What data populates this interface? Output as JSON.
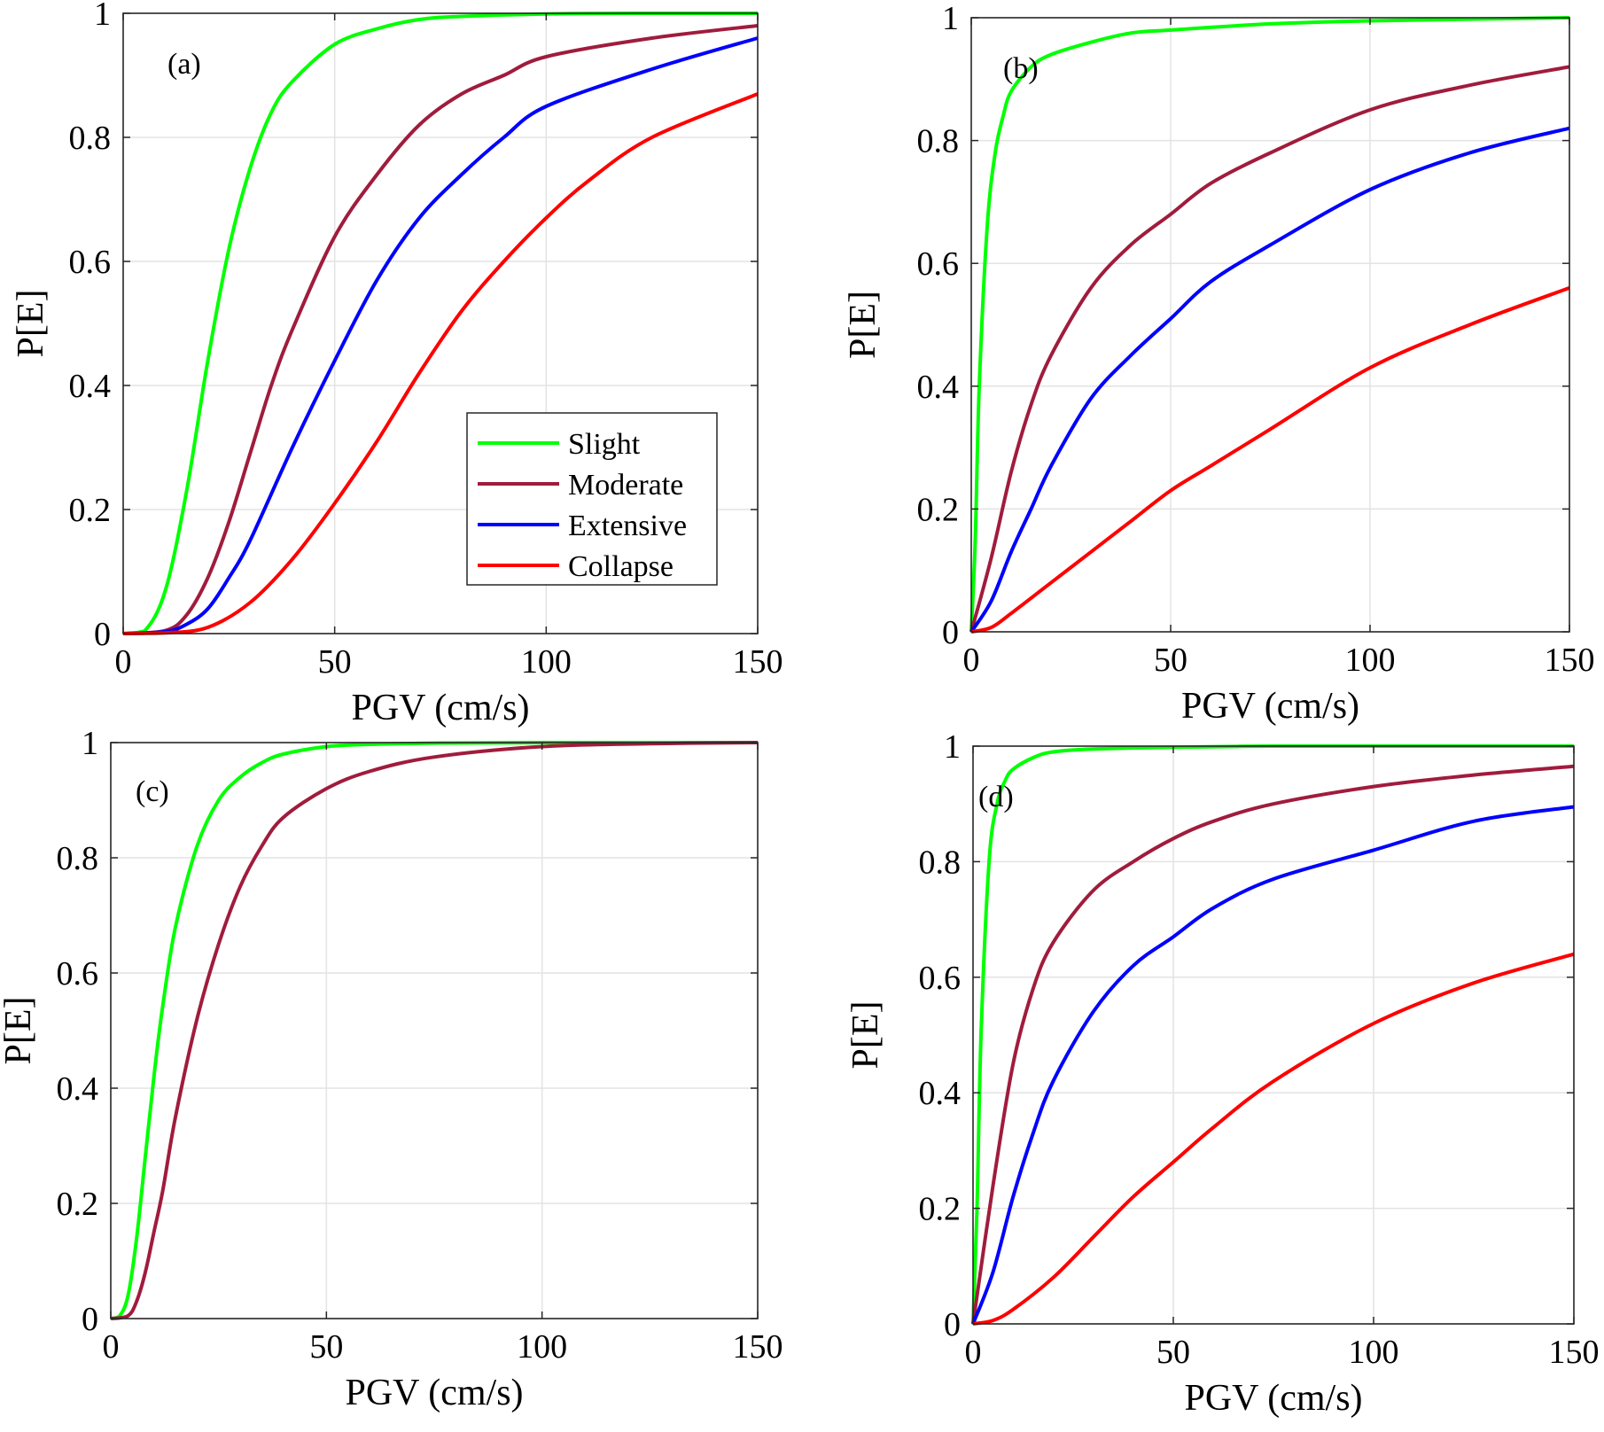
{
  "chart_data": [
    {
      "type": "line",
      "panel_label": "(a)",
      "xlabel": "PGV (cm/s)",
      "ylabel": "P[E]",
      "xlim": [
        0,
        150
      ],
      "ylim": [
        0,
        1
      ],
      "xticks": [
        0,
        50,
        100,
        150
      ],
      "yticks": [
        0,
        0.2,
        0.4,
        0.6,
        0.8,
        1
      ],
      "xtick_labels": [
        "0",
        "50",
        "100",
        "150"
      ],
      "ytick_labels": [
        "0",
        "0.2",
        "0.4",
        "0.6",
        "0.8",
        "1"
      ],
      "grid": true,
      "legend": "inside center-right",
      "series": [
        {
          "name": "Slight",
          "color": "#00ff00",
          "x": [
            0,
            5,
            10,
            15,
            20,
            25,
            30,
            35,
            40,
            50,
            60,
            70,
            80,
            100,
            125,
            150
          ],
          "y": [
            0,
            0.004,
            0.07,
            0.23,
            0.44,
            0.62,
            0.75,
            0.84,
            0.89,
            0.95,
            0.975,
            0.99,
            0.995,
            0.999,
            1.0,
            1.0
          ]
        },
        {
          "name": "Moderate",
          "color": "#a01c3c",
          "x": [
            0,
            10,
            15,
            20,
            25,
            30,
            35,
            40,
            50,
            60,
            70,
            80,
            90,
            100,
            125,
            150
          ],
          "y": [
            0,
            0.005,
            0.03,
            0.09,
            0.18,
            0.29,
            0.4,
            0.49,
            0.64,
            0.74,
            0.82,
            0.87,
            0.9,
            0.93,
            0.96,
            0.98
          ]
        },
        {
          "name": "Extensive",
          "color": "#0000ff",
          "x": [
            0,
            10,
            15,
            20,
            25,
            30,
            40,
            50,
            60,
            70,
            80,
            90,
            100,
            125,
            150
          ],
          "y": [
            0,
            0.003,
            0.015,
            0.04,
            0.09,
            0.15,
            0.3,
            0.44,
            0.57,
            0.67,
            0.74,
            0.8,
            0.85,
            0.91,
            0.96
          ]
        },
        {
          "name": "Collapse",
          "color": "#ff0000",
          "x": [
            0,
            10,
            20,
            30,
            40,
            50,
            60,
            70,
            80,
            90,
            100,
            110,
            125,
            150
          ],
          "y": [
            0,
            0.001,
            0.01,
            0.05,
            0.12,
            0.21,
            0.31,
            0.42,
            0.52,
            0.6,
            0.67,
            0.73,
            0.8,
            0.87
          ]
        }
      ]
    },
    {
      "type": "line",
      "panel_label": "(b)",
      "xlabel": "PGV (cm/s)",
      "ylabel": "P[E]",
      "xlim": [
        0,
        150
      ],
      "ylim": [
        0,
        1
      ],
      "xticks": [
        0,
        50,
        100,
        150
      ],
      "yticks": [
        0,
        0.2,
        0.4,
        0.6,
        0.8,
        1
      ],
      "xtick_labels": [
        "0",
        "50",
        "100",
        "150"
      ],
      "ytick_labels": [
        "0",
        "0.2",
        "0.4",
        "0.6",
        "0.8",
        "1"
      ],
      "grid": true,
      "series": [
        {
          "color": "#00ff00",
          "x": [
            0,
            1,
            2,
            4,
            6,
            8,
            10,
            15,
            20,
            30,
            40,
            50,
            75,
            100,
            150
          ],
          "y": [
            0,
            0.15,
            0.4,
            0.66,
            0.78,
            0.84,
            0.88,
            0.92,
            0.94,
            0.96,
            0.975,
            0.98,
            0.99,
            0.995,
            1.0
          ]
        },
        {
          "color": "#a01c3c",
          "x": [
            0,
            5,
            10,
            15,
            20,
            30,
            40,
            50,
            60,
            75,
            100,
            125,
            150
          ],
          "y": [
            0,
            0.12,
            0.26,
            0.37,
            0.45,
            0.56,
            0.63,
            0.68,
            0.73,
            0.78,
            0.85,
            0.89,
            0.92
          ]
        },
        {
          "color": "#0000ff",
          "x": [
            0,
            5,
            10,
            15,
            20,
            30,
            40,
            50,
            60,
            75,
            100,
            125,
            150
          ],
          "y": [
            0,
            0.05,
            0.13,
            0.2,
            0.27,
            0.38,
            0.45,
            0.51,
            0.57,
            0.63,
            0.72,
            0.78,
            0.82
          ]
        },
        {
          "color": "#ff0000",
          "x": [
            0,
            5,
            10,
            20,
            30,
            40,
            50,
            60,
            75,
            100,
            125,
            150
          ],
          "y": [
            0,
            0.007,
            0.03,
            0.08,
            0.13,
            0.18,
            0.23,
            0.27,
            0.33,
            0.43,
            0.5,
            0.56
          ]
        }
      ]
    },
    {
      "type": "line",
      "panel_label": "(c)",
      "xlabel": "PGV (cm/s)",
      "ylabel": "P[E]",
      "xlim": [
        0,
        150
      ],
      "ylim": [
        0,
        1
      ],
      "xticks": [
        0,
        50,
        100,
        150
      ],
      "yticks": [
        0,
        0.2,
        0.4,
        0.6,
        0.8,
        1
      ],
      "xtick_labels": [
        "0",
        "50",
        "100",
        "150"
      ],
      "ytick_labels": [
        "0",
        "0.2",
        "0.4",
        "0.6",
        "0.8",
        "1"
      ],
      "grid": true,
      "series": [
        {
          "color": "#00ff00",
          "x": [
            0,
            2,
            4,
            6,
            8,
            10,
            12,
            15,
            20,
            25,
            30,
            35,
            40,
            50,
            60,
            75,
            100,
            150
          ],
          "y": [
            0,
            0.004,
            0.04,
            0.14,
            0.28,
            0.42,
            0.54,
            0.68,
            0.82,
            0.9,
            0.94,
            0.965,
            0.98,
            0.993,
            0.997,
            0.999,
            1.0,
            1.0
          ]
        },
        {
          "color": "#a01c3c",
          "x": [
            0,
            4,
            6,
            8,
            10,
            12,
            15,
            20,
            25,
            30,
            35,
            40,
            50,
            60,
            75,
            100,
            125,
            150
          ],
          "y": [
            0,
            0.005,
            0.03,
            0.08,
            0.15,
            0.22,
            0.35,
            0.52,
            0.65,
            0.75,
            0.82,
            0.87,
            0.92,
            0.95,
            0.975,
            0.993,
            0.998,
            1.0
          ]
        }
      ]
    },
    {
      "type": "line",
      "panel_label": "(d)",
      "xlabel": "PGV (cm/s)",
      "ylabel": "P[E]",
      "xlim": [
        0,
        150
      ],
      "ylim": [
        0,
        1
      ],
      "xticks": [
        0,
        50,
        100,
        150
      ],
      "yticks": [
        0,
        0.2,
        0.4,
        0.6,
        0.8,
        1
      ],
      "xtick_labels": [
        "0",
        "50",
        "100",
        "150"
      ],
      "ytick_labels": [
        "0",
        "0.2",
        "0.4",
        "0.6",
        "0.8",
        "1"
      ],
      "grid": true,
      "series": [
        {
          "color": "#00ff00",
          "x": [
            0,
            1,
            2,
            4,
            6,
            8,
            10,
            15,
            20,
            30,
            50,
            75,
            100,
            150
          ],
          "y": [
            0,
            0.2,
            0.5,
            0.8,
            0.9,
            0.94,
            0.96,
            0.98,
            0.99,
            0.995,
            0.998,
            1.0,
            1.0,
            1.0
          ]
        },
        {
          "color": "#a01c3c",
          "x": [
            0,
            5,
            10,
            15,
            20,
            30,
            40,
            50,
            60,
            75,
            100,
            125,
            150
          ],
          "y": [
            0,
            0.24,
            0.45,
            0.58,
            0.66,
            0.75,
            0.8,
            0.84,
            0.87,
            0.9,
            0.93,
            0.95,
            0.965
          ]
        },
        {
          "color": "#0000ff",
          "x": [
            0,
            5,
            10,
            15,
            20,
            30,
            40,
            50,
            60,
            75,
            100,
            125,
            150
          ],
          "y": [
            0,
            0.09,
            0.22,
            0.33,
            0.42,
            0.54,
            0.62,
            0.67,
            0.72,
            0.77,
            0.82,
            0.87,
            0.895
          ]
        },
        {
          "color": "#ff0000",
          "x": [
            0,
            5,
            10,
            20,
            30,
            40,
            50,
            60,
            75,
            100,
            125,
            150
          ],
          "y": [
            0,
            0.006,
            0.025,
            0.08,
            0.15,
            0.22,
            0.28,
            0.34,
            0.42,
            0.52,
            0.59,
            0.64
          ]
        }
      ]
    }
  ]
}
